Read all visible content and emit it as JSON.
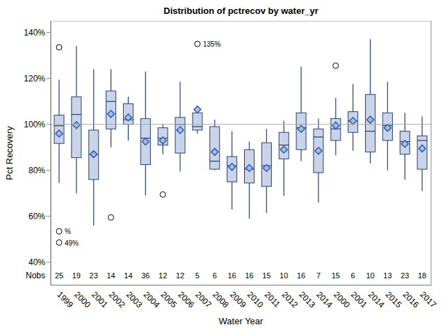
{
  "chart_data": {
    "type": "boxplot",
    "title": "Distribution of pctrecov by water_yr",
    "x_label": "Water Year",
    "y_label": "Pct Recovery",
    "categories": [
      "1999",
      "2000",
      "2001",
      "2002",
      "2003",
      "2004",
      "2005",
      "2006",
      "2007",
      "2008",
      "2009",
      "2010",
      "2011",
      "2012",
      "2013",
      "2014",
      "2000",
      "2001",
      "2014",
      "2015",
      "2016",
      "2017"
    ],
    "boxes": [
      {
        "min": 74.5,
        "q1": 91.7,
        "median": 99.4,
        "q3": 104,
        "max": 119.4,
        "mean": 96,
        "outliers": [
          {
            "value": 133.5
          },
          {
            "value": 53.5,
            "label": "%"
          },
          {
            "value": 48.6,
            "label": "49%"
          }
        ]
      },
      {
        "min": 70,
        "q1": 85.5,
        "median": 104.3,
        "q3": 112,
        "max": 134,
        "mean": 99.7,
        "outliers": []
      },
      {
        "min": 56,
        "q1": 76,
        "median": 87,
        "q3": 97.5,
        "max": 124,
        "mean": 87,
        "outliers": []
      },
      {
        "min": 90,
        "q1": 98,
        "median": 110,
        "q3": 114.5,
        "max": 124,
        "mean": 104.5,
        "outliers": [
          {
            "value": 59.5
          }
        ]
      },
      {
        "min": 93,
        "q1": 100,
        "median": 102,
        "q3": 109,
        "max": 112,
        "mean": 103,
        "outliers": []
      },
      {
        "min": 69,
        "q1": 82.5,
        "median": 94,
        "q3": 102.5,
        "max": 123,
        "mean": 92.5,
        "outliers": []
      },
      {
        "min": 87,
        "q1": 91,
        "median": 94,
        "q3": 98.5,
        "max": 100,
        "mean": 93,
        "outliers": [
          {
            "value": 69.5
          }
        ]
      },
      {
        "min": 79.5,
        "q1": 87.5,
        "median": 100,
        "q3": 103,
        "max": 118.5,
        "mean": 97.5,
        "outliers": []
      },
      {
        "min": 96,
        "q1": 97.5,
        "median": 99,
        "q3": 105,
        "max": 105,
        "mean": 106.5,
        "outliers": [
          {
            "value": 135,
            "label": "135%"
          }
        ]
      },
      {
        "min": 80,
        "q1": 80.5,
        "median": 84,
        "q3": 99,
        "max": 102,
        "mean": 88,
        "outliers": []
      },
      {
        "min": 63,
        "q1": 75,
        "median": 82,
        "q3": 86,
        "max": 97,
        "mean": 81.5,
        "outliers": []
      },
      {
        "min": 59,
        "q1": 74.5,
        "median": 80.5,
        "q3": 89,
        "max": 92.5,
        "mean": 81,
        "outliers": []
      },
      {
        "min": 61.5,
        "q1": 73,
        "median": 82,
        "q3": 92,
        "max": 98,
        "mean": 81,
        "outliers": []
      },
      {
        "min": 69,
        "q1": 85,
        "median": 91,
        "q3": 96.5,
        "max": 101.5,
        "mean": 89,
        "outliers": []
      },
      {
        "min": 84,
        "q1": 89,
        "median": 98.5,
        "q3": 105,
        "max": 125,
        "mean": 98,
        "outliers": []
      },
      {
        "min": 66,
        "q1": 79,
        "median": 94.5,
        "q3": 98,
        "max": 102.5,
        "mean": 88.5,
        "outliers": []
      },
      {
        "min": 86.5,
        "q1": 93,
        "median": 98,
        "q3": 102.5,
        "max": 111.5,
        "mean": 99.5,
        "outliers": [
          {
            "value": 125.5
          }
        ]
      },
      {
        "min": 88.5,
        "q1": 96.5,
        "median": 101.5,
        "q3": 105.5,
        "max": 117.5,
        "mean": 101.5,
        "outliers": []
      },
      {
        "min": 83,
        "q1": 88,
        "median": 97,
        "q3": 113,
        "max": 137,
        "mean": 102,
        "outliers": []
      },
      {
        "min": 80,
        "q1": 93,
        "median": 99.5,
        "q3": 105,
        "max": 118.5,
        "mean": 98.5,
        "outliers": []
      },
      {
        "min": 76,
        "q1": 87,
        "median": 92.5,
        "q3": 97,
        "max": 105,
        "mean": 91.5,
        "outliers": []
      },
      {
        "min": 71,
        "q1": 80.5,
        "median": 93,
        "q3": 95,
        "max": 103.5,
        "mean": 89.5,
        "outliers": []
      }
    ],
    "nobs_label": "Nobs",
    "nobs": [
      25,
      19,
      23,
      14,
      14,
      36,
      12,
      12,
      5,
      6,
      16,
      16,
      15,
      10,
      16,
      7,
      15,
      6,
      10,
      13,
      23,
      18
    ],
    "reference_line": 100,
    "ylim": [
      30,
      145
    ],
    "yticks": [
      {
        "value": 40,
        "label": "40%"
      },
      {
        "value": 60,
        "label": "60%"
      },
      {
        "value": 80,
        "label": "80%"
      },
      {
        "value": 100,
        "label": "100%"
      },
      {
        "value": 120,
        "label": "120%"
      },
      {
        "value": 140,
        "label": "140%"
      }
    ],
    "color": "#c9d4e8",
    "grid": false
  }
}
